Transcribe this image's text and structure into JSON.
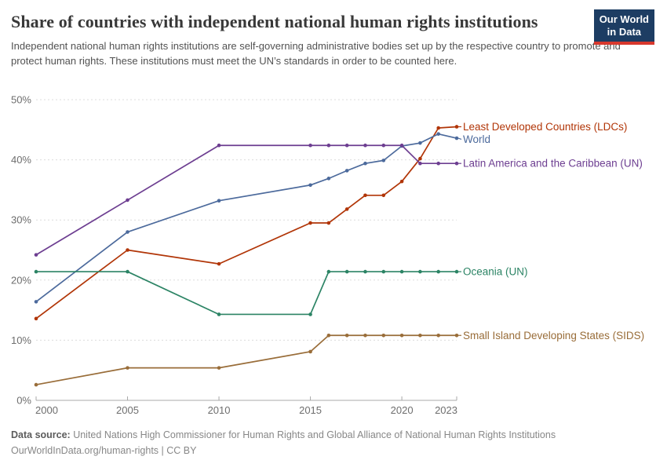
{
  "header": {
    "title": "Share of countries with independent national human rights institutions",
    "subtitle": "Independent national human rights institutions are self-governing administrative bodies set up by the respective country to promote and protect human rights. These institutions must meet the UN’s standards in order to be counted here.",
    "logo": {
      "line1": "Our World",
      "line2": "in Data",
      "bg_color": "#1d3d63",
      "stripe_color": "#d7382d"
    }
  },
  "chart_data": {
    "type": "line",
    "title": "Share of countries with independent national human rights institutions",
    "xlabel": "",
    "ylabel": "",
    "xlim": [
      2000,
      2023
    ],
    "ylim": [
      0,
      50
    ],
    "xticks": [
      2000,
      2005,
      2010,
      2015,
      2020,
      2023
    ],
    "yticks": [
      0,
      10,
      20,
      30,
      40,
      50
    ],
    "ytick_suffix": "%",
    "grid": "horizontal-dashed",
    "legend_position": "right-of-line-ends",
    "x": [
      2000,
      2005,
      2010,
      2015,
      2016,
      2017,
      2018,
      2019,
      2020,
      2021,
      2022,
      2023
    ],
    "series": [
      {
        "name": "Least Developed Countries (LDCs)",
        "color": "#B13507",
        "values": [
          13.6,
          25.0,
          22.7,
          29.5,
          29.5,
          31.8,
          34.1,
          34.1,
          36.4,
          40.2,
          45.3,
          45.5
        ]
      },
      {
        "name": "World",
        "color": "#4C6A9C",
        "values": [
          16.4,
          28.0,
          33.2,
          35.8,
          36.9,
          38.2,
          39.4,
          39.9,
          42.3,
          42.8,
          44.3,
          43.6
        ]
      },
      {
        "name": "Latin America and the Caribbean (UN)",
        "color": "#6D3E91",
        "values": [
          24.2,
          33.3,
          42.4,
          42.4,
          42.4,
          42.4,
          42.4,
          42.4,
          42.4,
          39.4,
          39.4,
          39.4
        ]
      },
      {
        "name": "Oceania (UN)",
        "color": "#2C8465",
        "values": [
          21.4,
          21.4,
          14.3,
          14.3,
          21.4,
          21.4,
          21.4,
          21.4,
          21.4,
          21.4,
          21.4,
          21.4
        ]
      },
      {
        "name": "Small Island Developing States (SIDS)",
        "color": "#996D39",
        "values": [
          2.6,
          5.4,
          5.4,
          8.1,
          10.8,
          10.8,
          10.8,
          10.8,
          10.8,
          10.8,
          10.8,
          10.8
        ]
      }
    ]
  },
  "footer": {
    "datasource_label": "Data source:",
    "datasource_text": " United Nations High Commissioner for Human Rights and Global Alliance of National Human Rights Institutions",
    "license_line": "OurWorldInData.org/human-rights | CC BY"
  }
}
